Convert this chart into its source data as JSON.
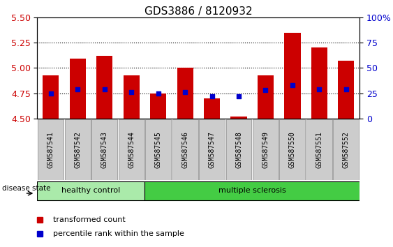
{
  "title": "GDS3886 / 8120932",
  "samples": [
    "GSM587541",
    "GSM587542",
    "GSM587543",
    "GSM587544",
    "GSM587545",
    "GSM587546",
    "GSM587547",
    "GSM587548",
    "GSM587549",
    "GSM587550",
    "GSM587551",
    "GSM587552"
  ],
  "bar_tops": [
    4.93,
    5.09,
    5.12,
    4.93,
    4.75,
    5.0,
    4.7,
    4.52,
    4.93,
    5.35,
    5.2,
    5.07
  ],
  "bar_bottom": 4.5,
  "blue_y": [
    4.75,
    4.79,
    4.79,
    4.76,
    4.75,
    4.76,
    4.72,
    4.72,
    4.78,
    4.83,
    4.79,
    4.79
  ],
  "ylim_left": [
    4.5,
    5.5
  ],
  "yticks_left": [
    4.5,
    4.75,
    5.0,
    5.25,
    5.5
  ],
  "ylim_right": [
    0,
    100
  ],
  "yticks_right": [
    0,
    25,
    50,
    75,
    100
  ],
  "ytick_labels_right": [
    "0",
    "25",
    "50",
    "75",
    "100%"
  ],
  "bar_color": "#cc0000",
  "blue_color": "#0000cc",
  "bar_width": 0.6,
  "healthy_count": 4,
  "healthy_label": "healthy control",
  "ms_label": "multiple sclerosis",
  "healthy_color": "#aaeaaa",
  "ms_color": "#44cc44",
  "group_label": "disease state",
  "legend_red": "transformed count",
  "legend_blue": "percentile rank within the sample",
  "background_color": "#ffffff",
  "ylabel_left_color": "#cc0000",
  "ylabel_right_color": "#0000cc",
  "title_fontsize": 11,
  "tick_fontsize": 9,
  "sample_fontsize": 7,
  "label_fontsize": 8,
  "ticklabel_box_color": "#cccccc",
  "ticklabel_box_edge": "#888888"
}
